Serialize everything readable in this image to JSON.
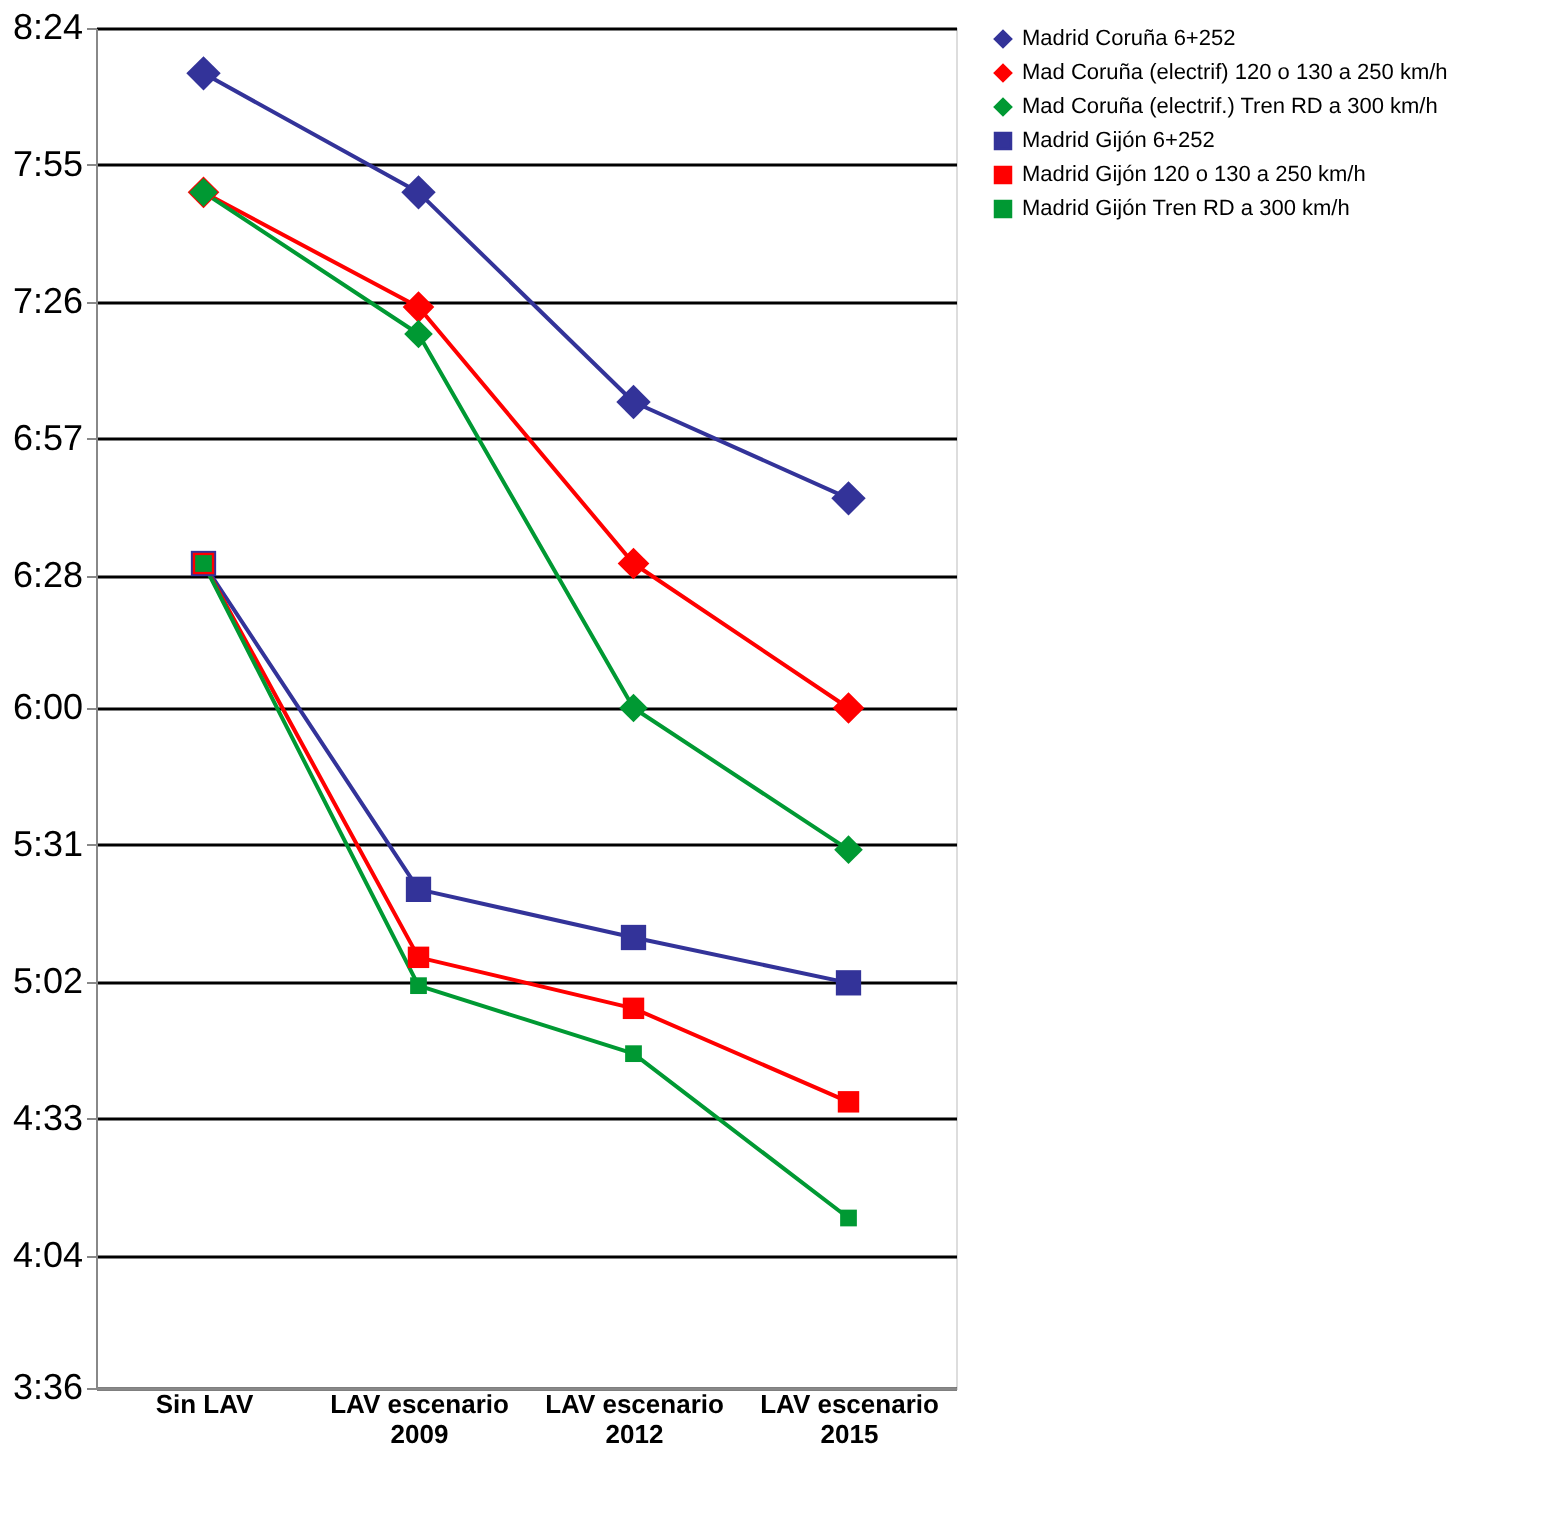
{
  "chart_data": {
    "type": "line",
    "categories": [
      "Sin LAV",
      "LAV escenario 2009",
      "LAV escenario 2012",
      "LAV escenario 2015"
    ],
    "ylim": [
      3.6,
      8.4
    ],
    "yticks": [
      {
        "value": 3.6,
        "label": "3:36"
      },
      {
        "value": 4.0667,
        "label": "4:04"
      },
      {
        "value": 4.55,
        "label": "4:33"
      },
      {
        "value": 5.0333,
        "label": "5:02"
      },
      {
        "value": 5.5167,
        "label": "5:31"
      },
      {
        "value": 6.0,
        "label": "6:00"
      },
      {
        "value": 6.4667,
        "label": "6:28"
      },
      {
        "value": 6.95,
        "label": "6:57"
      },
      {
        "value": 7.4333,
        "label": "7:26"
      },
      {
        "value": 7.9167,
        "label": "7:55"
      },
      {
        "value": 8.4,
        "label": "8:24"
      }
    ],
    "grid": "y",
    "legend": "right",
    "line_style": "solid",
    "series": [
      {
        "name": "Madrid Coruña 6+252",
        "color": "#333399",
        "marker": "diamond",
        "values": [
          8.24,
          7.82,
          7.08,
          6.74
        ]
      },
      {
        "name": "Mad Coruña (electrif) 120 o 130 a 250 km/h",
        "color": "#ff0000",
        "marker": "diamond",
        "values": [
          7.82,
          7.415,
          6.51,
          6.0
        ]
      },
      {
        "name": "Mad Coruña (electrif.) Tren RD a 300 km/h",
        "color": "#009933",
        "marker": "diamond",
        "values": [
          7.82,
          7.32,
          6.0,
          5.5
        ]
      },
      {
        "name": "Madrid Gijón 6+252",
        "color": "#333399",
        "marker": "square",
        "values": [
          6.51,
          5.36,
          5.19,
          5.03
        ]
      },
      {
        "name": "Madrid Gijón 120 o 130 a 250 km/h",
        "color": "#ff0000",
        "marker": "square",
        "values": [
          6.51,
          5.12,
          4.94,
          4.61
        ]
      },
      {
        "name": "Madrid Gijón Tren RD a 300 km/h",
        "color": "#009933",
        "marker": "square",
        "values": [
          6.51,
          5.02,
          4.78,
          4.2
        ]
      }
    ]
  }
}
